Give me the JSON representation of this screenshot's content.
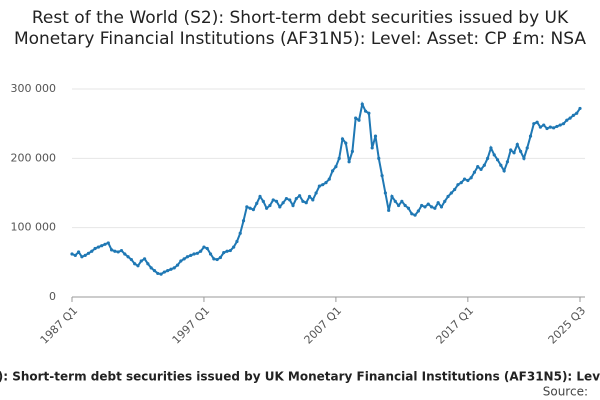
{
  "chart_data": {
    "type": "line",
    "title": "Rest of the World (S2): Short-term debt securities issued by UK Monetary Financial Institutions (AF31N5): Level: Asset: CP £m: NSA",
    "categories": [
      "1987 Q1",
      null,
      null,
      null,
      null,
      null,
      null,
      null,
      null,
      null,
      null,
      null,
      null,
      null,
      null,
      null,
      null,
      null,
      null,
      null,
      null,
      null,
      null,
      null,
      null,
      null,
      null,
      null,
      null,
      null,
      null,
      null,
      null,
      null,
      null,
      null,
      null,
      null,
      null,
      null,
      "1997 Q1",
      null,
      null,
      null,
      null,
      null,
      null,
      null,
      null,
      null,
      null,
      null,
      null,
      null,
      null,
      null,
      null,
      null,
      null,
      null,
      null,
      null,
      null,
      null,
      null,
      null,
      null,
      null,
      null,
      null,
      null,
      null,
      null,
      null,
      null,
      null,
      null,
      null,
      null,
      null,
      "2007 Q1",
      null,
      null,
      null,
      null,
      null,
      null,
      null,
      null,
      null,
      null,
      null,
      null,
      null,
      null,
      null,
      null,
      null,
      null,
      null,
      null,
      null,
      null,
      null,
      null,
      null,
      null,
      null,
      null,
      null,
      null,
      null,
      null,
      null,
      null,
      null,
      null,
      null,
      null,
      null,
      "2017 Q1",
      null,
      null,
      null,
      null,
      null,
      null,
      null,
      null,
      null,
      null,
      null,
      null,
      null,
      null,
      null,
      null,
      null,
      null,
      null,
      null,
      null,
      null,
      null,
      null,
      null,
      null,
      null,
      null,
      null,
      null,
      null,
      null,
      null,
      "2025 Q3"
    ],
    "series": [
      {
        "name": "Rest of the World (S2): Short-term debt securities issued by UK Monetary Financial Institutions (AF31N5): Level: Asset: CP £m: NSA",
        "color": "#1f78b4",
        "values": [
          62000,
          60000,
          65000,
          58000,
          60000,
          63000,
          66000,
          70000,
          72000,
          74000,
          76000,
          78000,
          68000,
          66000,
          65000,
          67000,
          62000,
          58000,
          54000,
          48000,
          45000,
          52000,
          55000,
          48000,
          42000,
          38000,
          34000,
          33000,
          36000,
          38000,
          40000,
          42000,
          46000,
          52000,
          55000,
          58000,
          60000,
          62000,
          63000,
          66000,
          72000,
          70000,
          62000,
          55000,
          54000,
          57000,
          64000,
          66000,
          67000,
          72000,
          80000,
          92000,
          110000,
          130000,
          128000,
          126000,
          135000,
          145000,
          138000,
          128000,
          132000,
          140000,
          138000,
          130000,
          136000,
          142000,
          140000,
          132000,
          142000,
          146000,
          138000,
          136000,
          145000,
          140000,
          150000,
          160000,
          162000,
          165000,
          170000,
          182000,
          188000,
          200000,
          228000,
          222000,
          195000,
          210000,
          258000,
          255000,
          278000,
          268000,
          265000,
          215000,
          232000,
          200000,
          175000,
          150000,
          125000,
          145000,
          138000,
          132000,
          138000,
          132000,
          128000,
          120000,
          118000,
          124000,
          132000,
          130000,
          134000,
          130000,
          128000,
          136000,
          130000,
          138000,
          145000,
          150000,
          155000,
          162000,
          165000,
          170000,
          168000,
          172000,
          180000,
          188000,
          184000,
          190000,
          200000,
          215000,
          205000,
          198000,
          190000,
          182000,
          195000,
          212000,
          208000,
          220000,
          210000,
          200000,
          215000,
          232000,
          250000,
          252000,
          245000,
          248000,
          243000,
          245000,
          244000,
          246000,
          248000,
          250000,
          255000,
          258000,
          262000,
          265000,
          272000
        ]
      }
    ],
    "ylim": [
      0,
      300000
    ],
    "yticks": [
      0,
      {
        "value": 100000,
        "label": "100 000"
      },
      {
        "value": 200000,
        "label": "200 000"
      },
      {
        "value": 300000,
        "label": "300 000"
      }
    ],
    "grid": true,
    "source": "Source:"
  }
}
